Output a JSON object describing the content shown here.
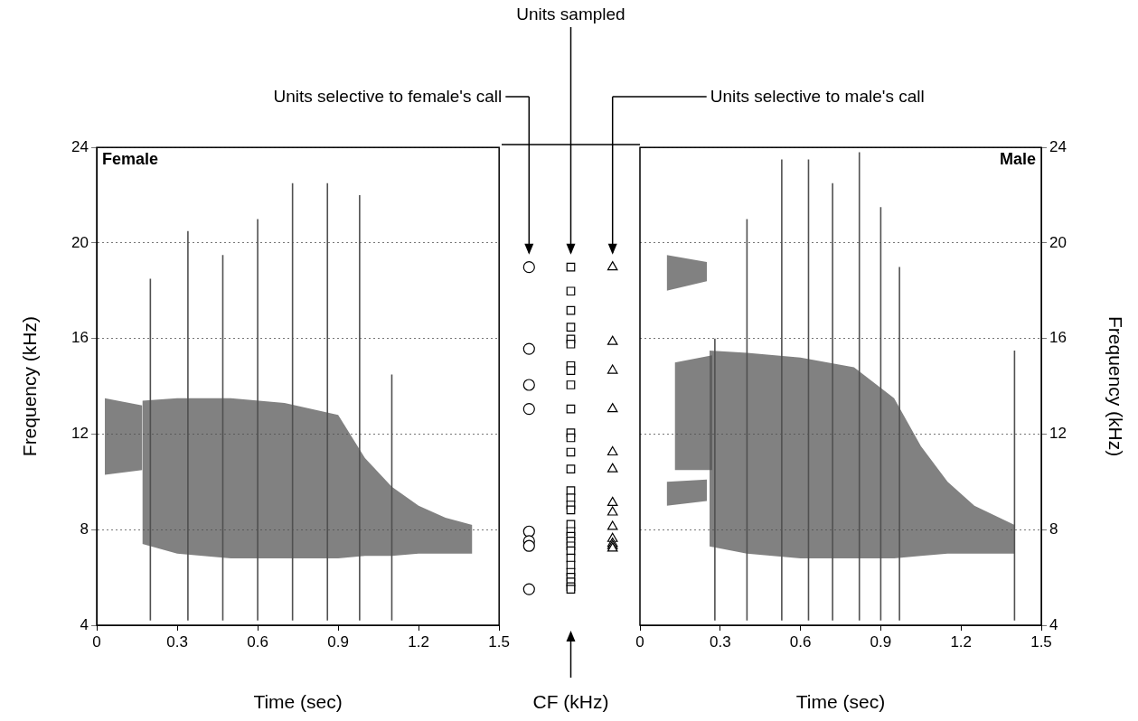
{
  "chart_data": [
    {
      "type": "spectrogram",
      "title": "Female",
      "x_label": "Time (sec)",
      "y_label": "Frequency (kHz)",
      "xlim": [
        0,
        1.5
      ],
      "xticks": [
        0,
        0.3,
        0.6,
        0.9,
        1.2,
        1.5
      ],
      "ylim": [
        4,
        24
      ],
      "yticks": [
        4,
        8,
        12,
        16,
        20,
        24
      ],
      "grid": true,
      "color": "#505050",
      "bands": [
        {
          "time": [
            0.03,
            0.17
          ],
          "low": [
            10.3,
            10.5
          ],
          "high": [
            13.5,
            13.2
          ]
        },
        {
          "time": [
            0.17,
            0.3,
            0.5,
            0.7,
            0.9,
            1.0,
            1.1,
            1.2,
            1.3,
            1.4
          ],
          "low": [
            7.4,
            7.0,
            6.8,
            6.8,
            6.8,
            6.9,
            6.9,
            7.0,
            7.0,
            7.0
          ],
          "high": [
            13.4,
            13.5,
            13.5,
            13.3,
            12.8,
            11.0,
            9.8,
            9.0,
            8.5,
            8.2
          ]
        }
      ],
      "clicks": [
        {
          "time": 0.2,
          "low": 4.2,
          "high": 18.5
        },
        {
          "time": 0.34,
          "low": 4.2,
          "high": 20.5
        },
        {
          "time": 0.47,
          "low": 4.2,
          "high": 19.5
        },
        {
          "time": 0.6,
          "low": 4.2,
          "high": 21
        },
        {
          "time": 0.73,
          "low": 4.2,
          "high": 22.5
        },
        {
          "time": 0.86,
          "low": 4.2,
          "high": 22.5
        },
        {
          "time": 0.98,
          "low": 4.2,
          "high": 22
        },
        {
          "time": 1.1,
          "low": 4.2,
          "high": 14.5
        }
      ]
    },
    {
      "type": "scatter",
      "x_label": "CF (kHz)",
      "ylim": [
        4,
        24
      ],
      "tick_labels": false,
      "series": [
        {
          "name": "Units selective to female's call",
          "marker": "circle",
          "color": "#000000",
          "values": [
            18.9,
            15.5,
            14.0,
            13.0,
            7.9,
            7.5,
            7.3,
            5.5
          ]
        },
        {
          "name": "Units sampled",
          "marker": "rect",
          "color": "#000000",
          "values": [
            18.9,
            17.9,
            17.1,
            16.4,
            15.9,
            15.7,
            14.8,
            14.6,
            14.0,
            13.0,
            12.0,
            11.8,
            11.2,
            10.5,
            9.6,
            9.3,
            9.0,
            8.8,
            8.2,
            7.9,
            7.7,
            7.5,
            7.3,
            7.1,
            6.8,
            6.5,
            6.2,
            6.0,
            5.8,
            5.6,
            5.5
          ]
        },
        {
          "name": "Units selective to male's call",
          "marker": "triangle",
          "color": "#000000",
          "values": [
            18.9,
            15.8,
            14.6,
            13.0,
            11.2,
            10.5,
            9.1,
            8.7,
            8.1,
            7.6,
            7.4,
            7.3,
            7.2
          ]
        }
      ]
    },
    {
      "type": "spectrogram",
      "title": "Male",
      "x_label": "Time (sec)",
      "y_label": "Frequency (kHz)",
      "xlim": [
        0,
        1.5
      ],
      "xticks": [
        0,
        0.3,
        0.6,
        0.9,
        1.2,
        1.5
      ],
      "ylim": [
        4,
        24
      ],
      "yticks": [
        4,
        8,
        12,
        16,
        20,
        24
      ],
      "grid": true,
      "color": "#505050",
      "bands": [
        {
          "time": [
            0.1,
            0.25
          ],
          "low": [
            18.0,
            18.4
          ],
          "high": [
            19.5,
            19.2
          ]
        },
        {
          "time": [
            0.1,
            0.25
          ],
          "low": [
            9.0,
            9.2
          ],
          "high": [
            10.0,
            10.1
          ]
        },
        {
          "time": [
            0.13,
            0.27
          ],
          "low": [
            10.5,
            10.5
          ],
          "high": [
            15.0,
            15.3
          ]
        },
        {
          "time": [
            0.26,
            0.4,
            0.6,
            0.8,
            0.95,
            1.05,
            1.15,
            1.25,
            1.4
          ],
          "low": [
            7.3,
            7.0,
            6.8,
            6.8,
            6.8,
            6.9,
            7.0,
            7.0,
            7.0
          ],
          "high": [
            15.5,
            15.4,
            15.2,
            14.8,
            13.5,
            11.5,
            10.0,
            9.0,
            8.2
          ]
        }
      ],
      "clicks": [
        {
          "time": 0.28,
          "low": 4.2,
          "high": 16
        },
        {
          "time": 0.4,
          "low": 4.2,
          "high": 21
        },
        {
          "time": 0.53,
          "low": 4.2,
          "high": 23.5
        },
        {
          "time": 0.63,
          "low": 4.2,
          "high": 23.5
        },
        {
          "time": 0.72,
          "low": 4.2,
          "high": 22.5
        },
        {
          "time": 0.82,
          "low": 4.2,
          "high": 23.8
        },
        {
          "time": 0.9,
          "low": 4.2,
          "high": 21.5
        },
        {
          "time": 0.97,
          "low": 4.2,
          "high": 19
        },
        {
          "time": 1.4,
          "low": 4.2,
          "high": 15.5
        }
      ]
    }
  ]
}
